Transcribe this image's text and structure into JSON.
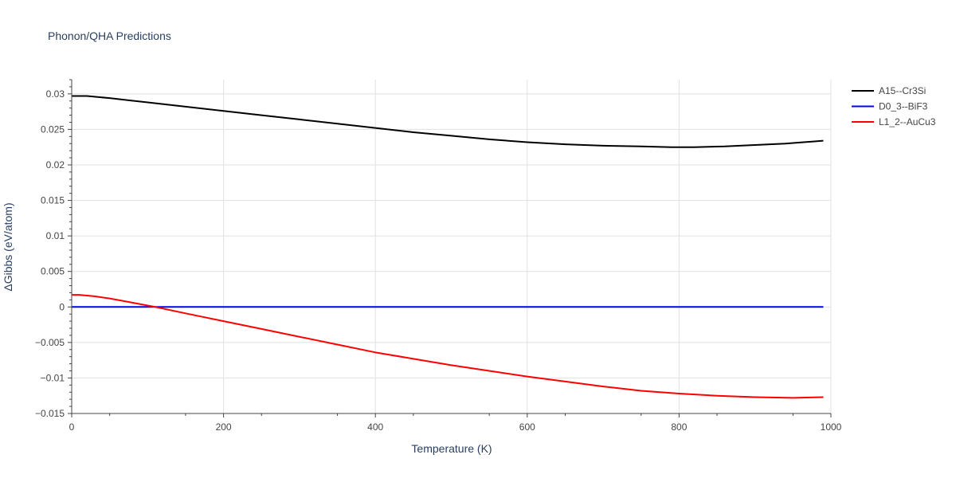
{
  "chart_data": {
    "type": "line",
    "title": "Phonon/QHA Predictions",
    "xlabel": "Temperature (K)",
    "ylabel": "ΔGibbs (eV/atom)",
    "xlim": [
      0,
      1000
    ],
    "ylim": [
      -0.015,
      0.032
    ],
    "x_ticks": [
      0,
      200,
      400,
      600,
      800,
      1000
    ],
    "x_tick_labels": [
      "0",
      "200",
      "400",
      "600",
      "800",
      "1000"
    ],
    "y_ticks": [
      -0.015,
      -0.01,
      -0.005,
      0,
      0.005,
      0.01,
      0.015,
      0.02,
      0.025,
      0.03
    ],
    "y_tick_labels": [
      "−0.015",
      "−0.01",
      "−0.005",
      "0",
      "0.005",
      "0.01",
      "0.015",
      "0.02",
      "0.025",
      "0.03"
    ],
    "grid": true,
    "legend_position": "top-right outside",
    "series": [
      {
        "name": "A15--Cr3Si",
        "color": "#000000",
        "x": [
          0,
          10,
          20,
          30,
          50,
          75,
          100,
          150,
          200,
          250,
          300,
          350,
          400,
          450,
          500,
          550,
          600,
          650,
          700,
          750,
          790,
          820,
          860,
          900,
          940,
          990
        ],
        "y": [
          0.0297,
          0.0297,
          0.0297,
          0.0296,
          0.0294,
          0.0291,
          0.0288,
          0.0282,
          0.0276,
          0.027,
          0.0264,
          0.0258,
          0.0252,
          0.0246,
          0.0241,
          0.0236,
          0.0232,
          0.0229,
          0.0227,
          0.0226,
          0.0225,
          0.0225,
          0.0226,
          0.0228,
          0.023,
          0.0234
        ]
      },
      {
        "name": "D0_3--BiF3",
        "color": "#0000ff",
        "x": [
          0,
          990
        ],
        "y": [
          0,
          0
        ]
      },
      {
        "name": "L1_2--AuCu3",
        "color": "#ff0000",
        "x": [
          0,
          10,
          20,
          30,
          50,
          75,
          100,
          110,
          150,
          200,
          250,
          300,
          350,
          400,
          450,
          500,
          550,
          600,
          650,
          700,
          750,
          800,
          850,
          900,
          950,
          990
        ],
        "y": [
          0.0017,
          0.0017,
          0.0016,
          0.0015,
          0.0012,
          0.0007,
          0.0002,
          0.0,
          -0.0009,
          -0.002,
          -0.0031,
          -0.0042,
          -0.0053,
          -0.0064,
          -0.0073,
          -0.0082,
          -0.009,
          -0.0098,
          -0.0105,
          -0.0112,
          -0.0118,
          -0.0122,
          -0.0125,
          -0.0127,
          -0.0128,
          -0.0127
        ]
      }
    ]
  }
}
